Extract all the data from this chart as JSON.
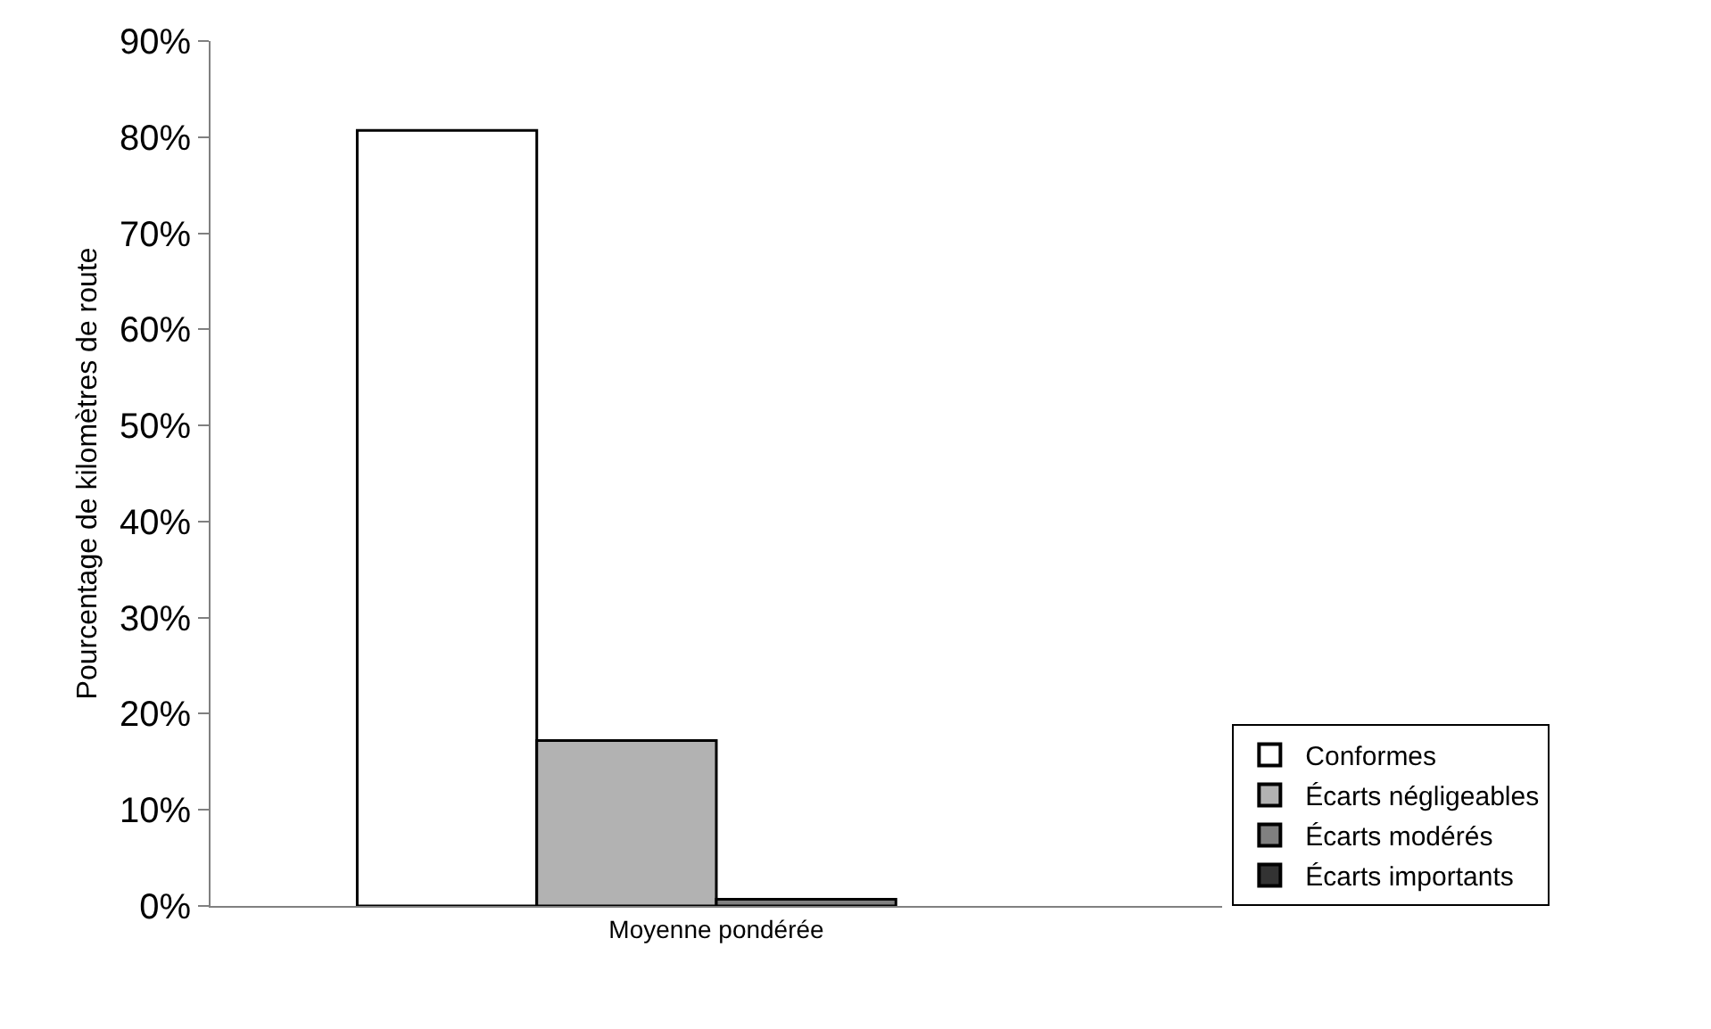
{
  "chart_data": {
    "type": "bar",
    "ylabel": "Pourcentage de kilomètres de route",
    "categories": [
      "Moyenne pondérée"
    ],
    "series": [
      {
        "name": "Conformes",
        "color": "#ffffff",
        "values": [
          80.7
        ]
      },
      {
        "name": "Écarts négligeables",
        "color": "#b2b2b2",
        "values": [
          17.2
        ]
      },
      {
        "name": "Écarts modérés",
        "color": "#808080",
        "values": [
          0.7
        ]
      },
      {
        "name": "Écarts importants",
        "color": "#333333",
        "values": [
          null
        ]
      }
    ],
    "ylim": [
      0,
      90
    ],
    "yticks": [
      {
        "value": 0,
        "label": "0%"
      },
      {
        "value": 10,
        "label": "10%"
      },
      {
        "value": 20,
        "label": "20%"
      },
      {
        "value": 30,
        "label": "30%"
      },
      {
        "value": 40,
        "label": "40%"
      },
      {
        "value": 50,
        "label": "50%"
      },
      {
        "value": 60,
        "label": "60%"
      },
      {
        "value": 70,
        "label": "70%"
      },
      {
        "value": 80,
        "label": "80%"
      },
      {
        "value": 90,
        "label": "90%"
      }
    ],
    "legend": "bottom right"
  }
}
